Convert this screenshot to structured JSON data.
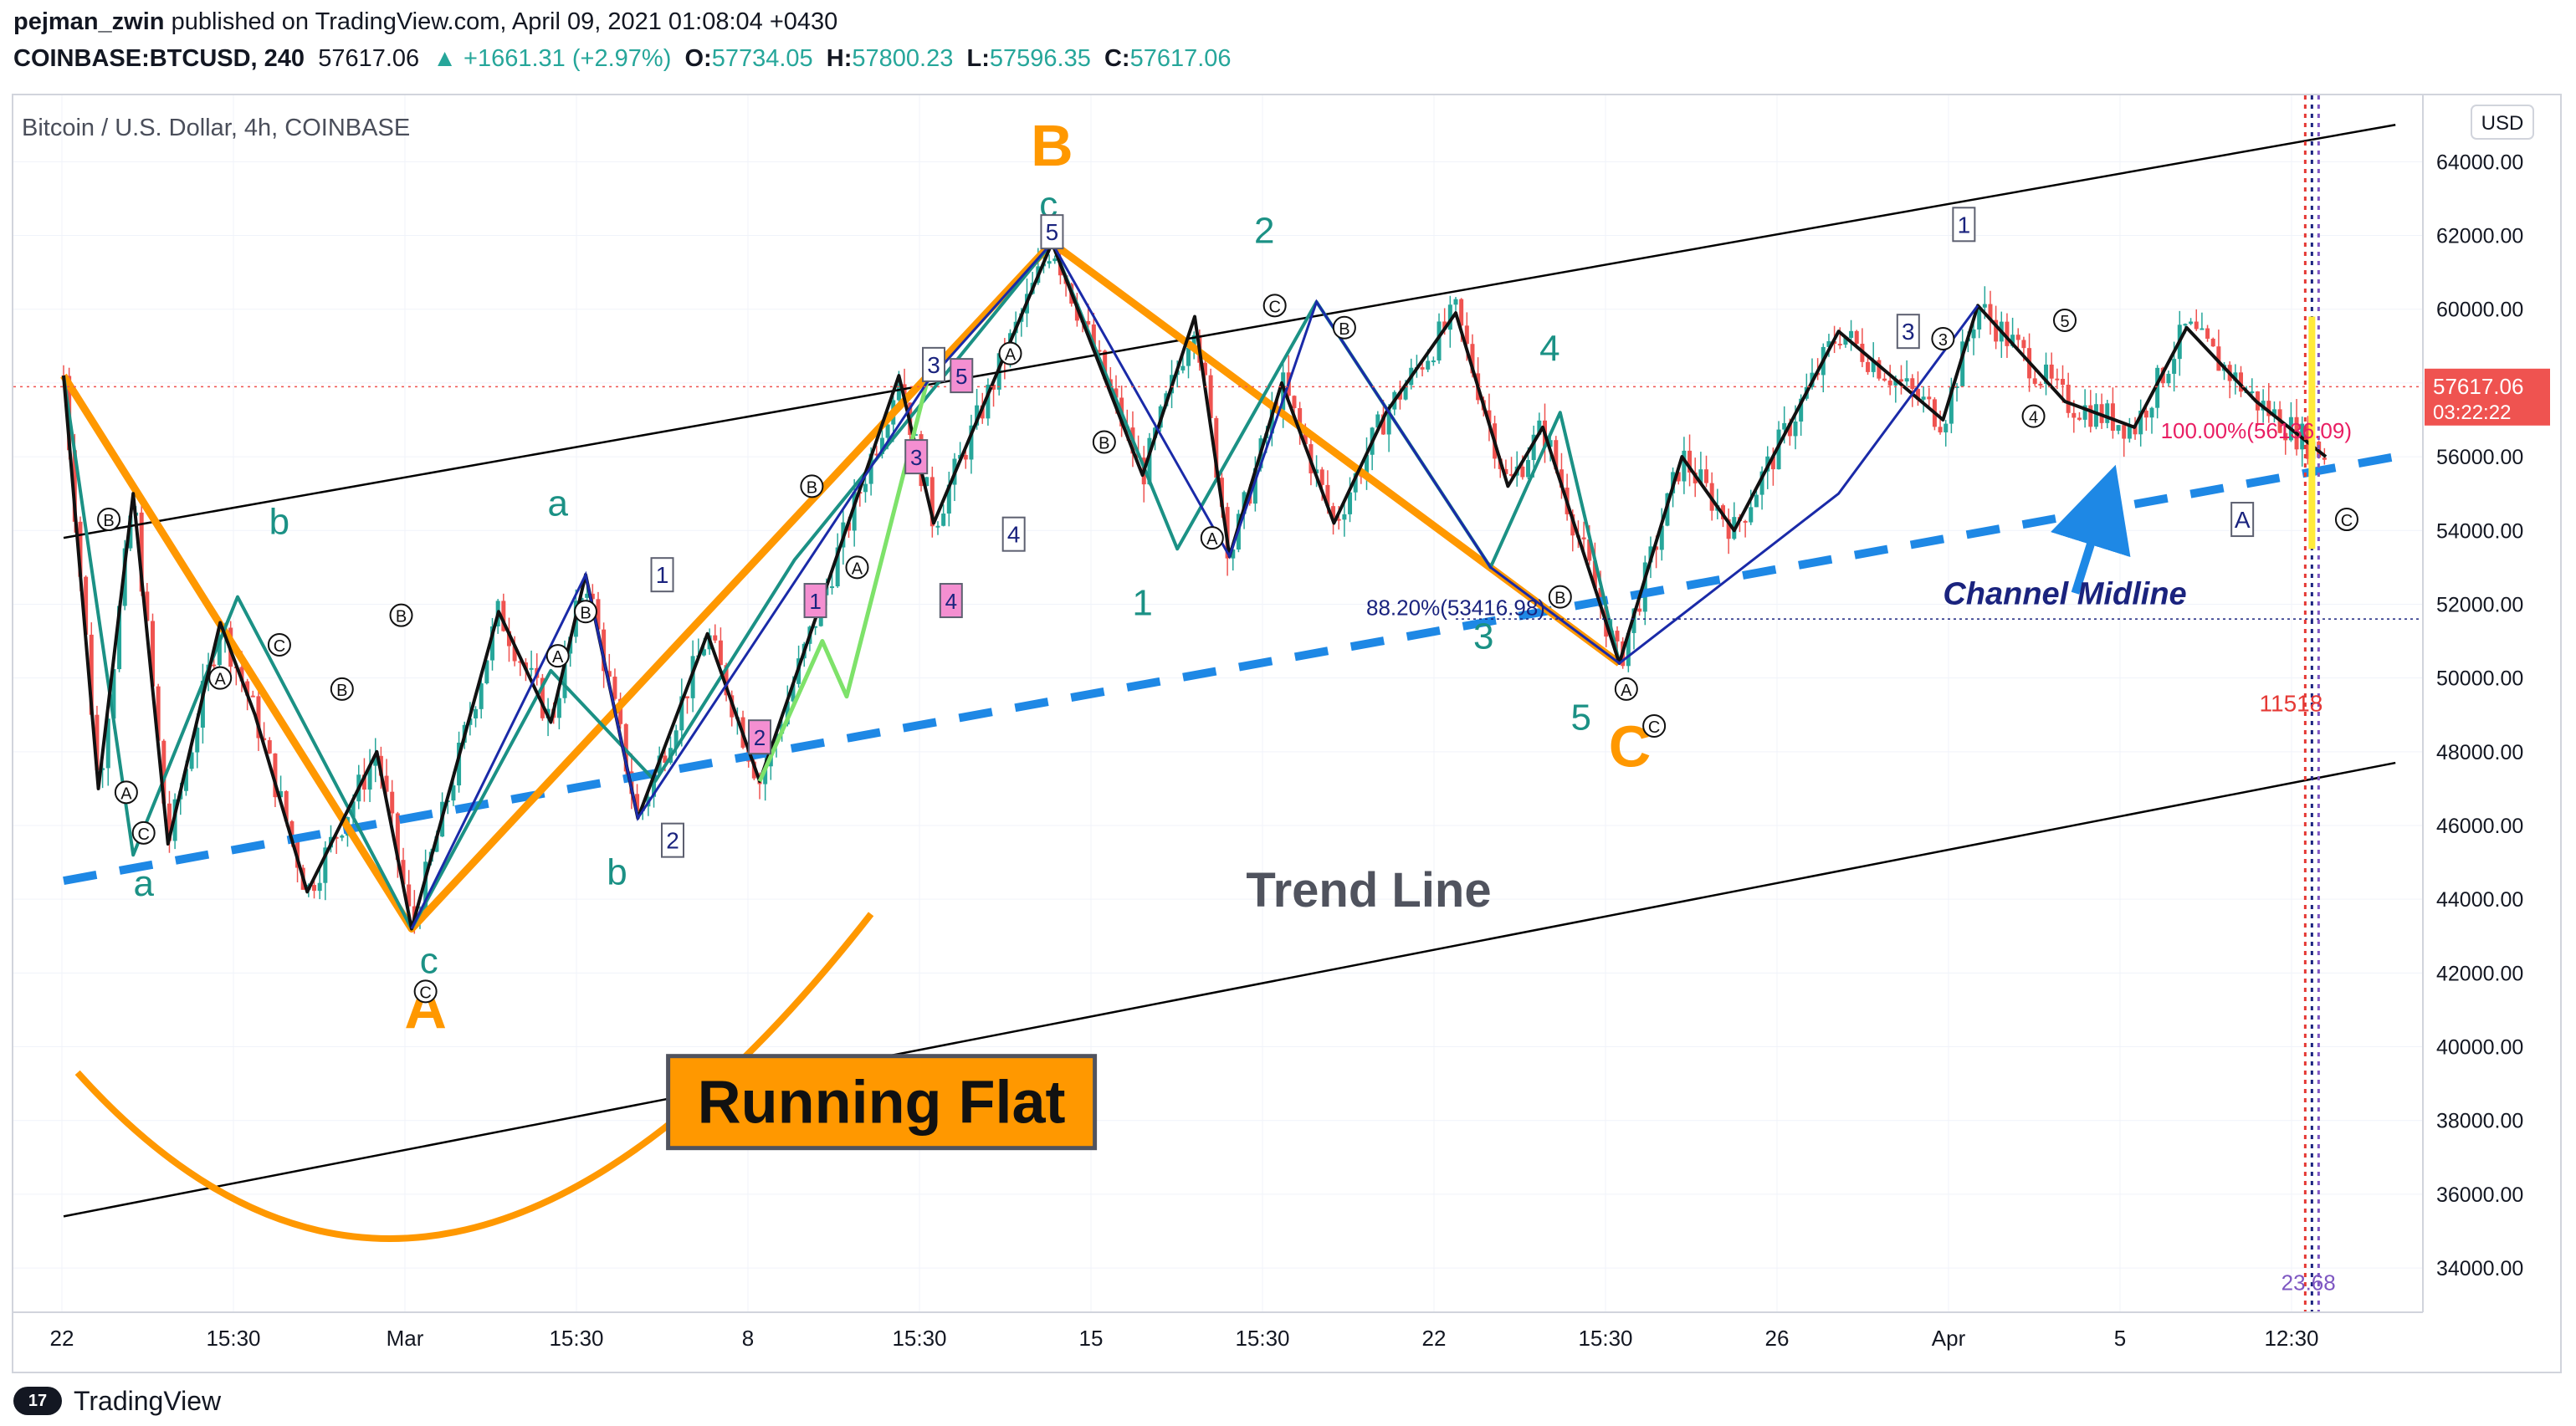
{
  "header": {
    "publisher": "pejman_zwin",
    "published_text": "published on TradingView.com, April 09, 2021 01:08:04 +0430",
    "symbol": "COINBASE:BTCUSD, 240",
    "last": "57617.06",
    "change": "+1661.31 (+2.97%)",
    "ohlc": {
      "o_label": "O:",
      "o": "57734.05",
      "h_label": "H:",
      "h": "57800.23",
      "l_label": "L:",
      "l": "57596.35",
      "c_label": "C:",
      "c": "57617.06"
    }
  },
  "chart_title": "Bitcoin / U.S. Dollar, 4h, COINBASE",
  "currency_button": "USD",
  "price_label": {
    "value": "57617.06",
    "timer": "03:22:22"
  },
  "footer": {
    "brand": "TradingView",
    "logo_text": "17"
  },
  "colors": {
    "up": "#26a69a",
    "down": "#ef5350",
    "orange": "#ff9800",
    "teal": "#1b9185",
    "blue": "#1e88e5",
    "navy": "#1a237e",
    "pink": "#e040fb"
  },
  "chart_data": {
    "type": "line",
    "title": "Bitcoin / U.S. Dollar, 4h, COINBASE",
    "xlabel": "",
    "ylabel": "USD",
    "ylim": [
      32800,
      65800
    ],
    "y_ticks": [
      "64000.00",
      "62000.00",
      "60000.00",
      "58000.00",
      "56000.00",
      "54000.00",
      "52000.00",
      "50000.00",
      "48000.00",
      "46000.00",
      "44000.00",
      "42000.00",
      "40000.00",
      "38000.00",
      "36000.00",
      "34000.00"
    ],
    "x_ticks": [
      "22",
      "15:30",
      "Mar",
      "15:30",
      "8",
      "15:30",
      "15",
      "15:30",
      "22",
      "15:30",
      "26",
      "Apr",
      "5",
      "12:30"
    ],
    "series": [
      {
        "name": "Orange ABC running flat",
        "points": [
          [
            0.0,
            58200
          ],
          [
            10.0,
            43200
          ],
          [
            28.4,
            61800
          ],
          [
            44.7,
            50400
          ]
        ]
      },
      {
        "name": "Teal wave path",
        "points": [
          [
            0.0,
            58200
          ],
          [
            2.0,
            45200
          ],
          [
            5.0,
            52200
          ],
          [
            10.0,
            43200
          ],
          [
            14.0,
            50200
          ],
          [
            17.0,
            47200
          ],
          [
            21.0,
            53200
          ],
          [
            28.4,
            61800
          ],
          [
            32.0,
            53500
          ],
          [
            36.0,
            60200
          ],
          [
            41.0,
            53000
          ],
          [
            43.0,
            57200
          ],
          [
            44.7,
            50400
          ]
        ]
      },
      {
        "name": "Black subwave path",
        "points": [
          [
            0.0,
            58200
          ],
          [
            1.0,
            47000
          ],
          [
            2.0,
            55000
          ],
          [
            3.0,
            45500
          ],
          [
            4.5,
            51500
          ],
          [
            5.5,
            49000
          ],
          [
            7.0,
            44200
          ],
          [
            9.0,
            48000
          ],
          [
            10.0,
            43200
          ],
          [
            12.5,
            51800
          ],
          [
            14.0,
            48800
          ],
          [
            15.0,
            52800
          ],
          [
            16.5,
            46200
          ],
          [
            18.5,
            51200
          ],
          [
            20.0,
            47200
          ],
          [
            24.0,
            58200
          ],
          [
            25.0,
            54200
          ],
          [
            28.4,
            61800
          ],
          [
            31.0,
            55500
          ],
          [
            32.5,
            59800
          ],
          [
            33.5,
            53300
          ],
          [
            35.0,
            58000
          ],
          [
            36.5,
            54200
          ],
          [
            38.0,
            57200
          ],
          [
            40.0,
            59900
          ],
          [
            41.5,
            55200
          ],
          [
            42.5,
            56800
          ],
          [
            44.7,
            50400
          ],
          [
            46.5,
            56000
          ],
          [
            48.0,
            54000
          ],
          [
            51.0,
            59400
          ],
          [
            54.0,
            57000
          ],
          [
            55.0,
            60100
          ],
          [
            57.5,
            57500
          ],
          [
            59.5,
            56800
          ],
          [
            61.0,
            59500
          ],
          [
            63.0,
            57500
          ],
          [
            65.0,
            56000
          ]
        ]
      },
      {
        "name": "Bull flag micro wave",
        "points": [
          [
            20.0,
            47200
          ],
          [
            21.8,
            51000
          ],
          [
            22.5,
            49500
          ],
          [
            24.8,
            58000
          ]
        ]
      }
    ],
    "trendlines": [
      {
        "name": "Upper channel",
        "points": [
          [
            0,
            53800
          ],
          [
            67,
            65000
          ]
        ]
      },
      {
        "name": "Lower trend line",
        "points": [
          [
            0,
            35400
          ],
          [
            67,
            47700
          ]
        ]
      },
      {
        "name": "Channel Midline (dashed)",
        "points": [
          [
            0,
            44500
          ],
          [
            67,
            56000
          ]
        ]
      }
    ],
    "annotations": [
      {
        "text": "B",
        "x": 28.4,
        "y": 63900
      },
      {
        "text": "A",
        "x": 10.4,
        "y": 40500
      },
      {
        "text": "C",
        "x": 45.0,
        "y": 47600
      },
      {
        "text": "Trend Line",
        "x": 37.5,
        "y": 43800
      },
      {
        "text": "Running Flat",
        "x": 23.5,
        "y": 38500
      },
      {
        "text": "Channel Midline",
        "x": 57.5,
        "y": 52000
      },
      {
        "text": "88.20%(53416.98)",
        "x": 40.0,
        "y": 51700
      },
      {
        "text": "100.00%(56136.09)",
        "x": 63.0,
        "y": 56500
      },
      {
        "text": "11518",
        "x": 64.0,
        "y": 49100
      },
      {
        "text": "23.68",
        "x": 64.5,
        "y": 33400
      }
    ],
    "wave_labels": [
      {
        "text": "a",
        "x": 2.3,
        "y": 44100
      },
      {
        "text": "b",
        "x": 6.2,
        "y": 53900
      },
      {
        "text": "c",
        "x": 10.5,
        "y": 42000
      },
      {
        "text": "a",
        "x": 14.2,
        "y": 54400
      },
      {
        "text": "b",
        "x": 15.9,
        "y": 44400
      },
      {
        "text": "c",
        "x": 28.3,
        "y": 62500
      },
      {
        "text": "1",
        "x": 31.0,
        "y": 51700
      },
      {
        "text": "2",
        "x": 34.5,
        "y": 61800
      },
      {
        "text": "3",
        "x": 40.8,
        "y": 50800
      },
      {
        "text": "4",
        "x": 42.7,
        "y": 58600
      },
      {
        "text": "5",
        "x": 43.6,
        "y": 48600
      }
    ],
    "legend": "none",
    "grid": true
  }
}
